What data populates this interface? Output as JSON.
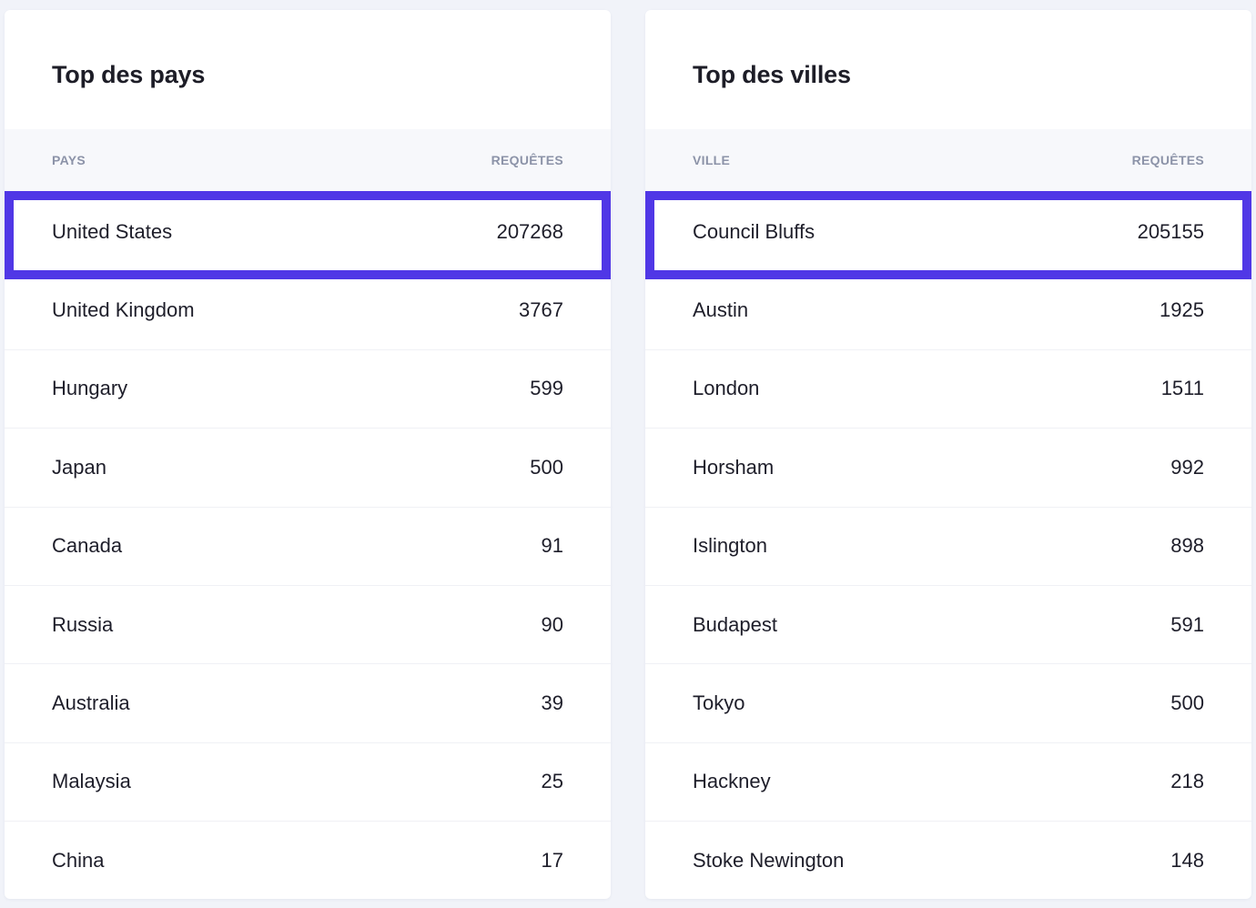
{
  "countries": {
    "title": "Top des pays",
    "header": {
      "name": "PAYS",
      "value": "REQUÊTES"
    },
    "rows": [
      {
        "name": "United States",
        "value": "207268"
      },
      {
        "name": "United Kingdom",
        "value": "3767"
      },
      {
        "name": "Hungary",
        "value": "599"
      },
      {
        "name": "Japan",
        "value": "500"
      },
      {
        "name": "Canada",
        "value": "91"
      },
      {
        "name": "Russia",
        "value": "90"
      },
      {
        "name": "Australia",
        "value": "39"
      },
      {
        "name": "Malaysia",
        "value": "25"
      },
      {
        "name": "China",
        "value": "17"
      }
    ]
  },
  "cities": {
    "title": "Top des villes",
    "header": {
      "name": "VILLE",
      "value": "REQUÊTES"
    },
    "rows": [
      {
        "name": "Council Bluffs",
        "value": "205155"
      },
      {
        "name": "Austin",
        "value": "1925"
      },
      {
        "name": "London",
        "value": "1511"
      },
      {
        "name": "Horsham",
        "value": "992"
      },
      {
        "name": "Islington",
        "value": "898"
      },
      {
        "name": "Budapest",
        "value": "591"
      },
      {
        "name": "Tokyo",
        "value": "500"
      },
      {
        "name": "Hackney",
        "value": "218"
      },
      {
        "name": "Stoke Newington",
        "value": "148"
      }
    ]
  },
  "colors": {
    "highlight": "#5037e6",
    "background": "#f1f3f9",
    "header_text": "#8c93a8"
  }
}
